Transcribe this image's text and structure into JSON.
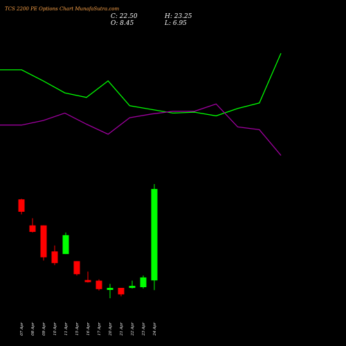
{
  "header": {
    "title": "TCS 2200 PE Options Chart MunafaSutra.com",
    "close_label": "C: 22.50",
    "open_label": "O: 8.45",
    "high_label": "H: 23.25",
    "low_label": "L: 6.95"
  },
  "colors": {
    "background": "#000000",
    "bullish": "#00ff00",
    "bearish": "#ff0000",
    "title": "#ffa54a",
    "line_green": "#00ff00",
    "line_magenta": "#a000a0"
  },
  "chart_data": [
    {
      "type": "line",
      "categories": [
        "",
        "07 Apr",
        "08 Apr",
        "09 Apr",
        "10 Apr",
        "11 Apr",
        "15 Apr",
        "16 Apr",
        "17 Apr",
        "20 Apr",
        "21 Apr",
        "22 Apr",
        "23 Apr",
        "24 Apr"
      ],
      "series": [
        {
          "color": "#00ff00",
          "values": [
            0.82,
            0.82,
            0.7,
            0.57,
            0.52,
            0.7,
            0.43,
            0.39,
            0.35,
            0.36,
            0.32,
            0.4,
            0.46,
            1.0
          ]
        },
        {
          "color": "#a000a0",
          "values": [
            0.22,
            0.22,
            0.27,
            0.35,
            0.23,
            0.12,
            0.3,
            0.34,
            0.37,
            0.37,
            0.45,
            0.2,
            0.17,
            -0.11
          ]
        }
      ]
    },
    {
      "type": "candlestick",
      "categories": [
        "07 Apr",
        "08 Apr",
        "09 Apr",
        "10 Apr",
        "11 Apr",
        "15 Apr",
        "16 Apr",
        "17 Apr",
        "20 Apr",
        "21 Apr",
        "22 Apr",
        "23 Apr",
        "24 Apr"
      ],
      "candles": [
        {
          "date": "07 Apr",
          "open": 20.9,
          "high": 21.0,
          "low": 18.6,
          "close": 19.0
        },
        {
          "date": "08 Apr",
          "open": 16.9,
          "high": 18.0,
          "low": 15.8,
          "close": 15.9
        },
        {
          "date": "09 Apr",
          "open": 16.9,
          "high": 16.9,
          "low": 11.5,
          "close": 12.0
        },
        {
          "date": "10 Apr",
          "open": 12.9,
          "high": 13.8,
          "low": 10.8,
          "close": 11.1
        },
        {
          "date": "11 Apr",
          "open": 12.5,
          "high": 15.8,
          "low": 12.5,
          "close": 15.4
        },
        {
          "date": "15 Apr",
          "open": 11.4,
          "high": 11.4,
          "low": 9.2,
          "close": 9.4
        },
        {
          "date": "16 Apr",
          "open": 8.5,
          "high": 9.8,
          "low": 8.1,
          "close": 8.2
        },
        {
          "date": "17 Apr",
          "open": 8.4,
          "high": 8.6,
          "low": 6.9,
          "close": 7.1
        },
        {
          "date": "20 Apr",
          "open": 7.1,
          "high": 7.9,
          "low": 5.7,
          "close": 7.3
        },
        {
          "date": "21 Apr",
          "open": 7.3,
          "high": 7.3,
          "low": 6.0,
          "close": 6.3
        },
        {
          "date": "22 Apr",
          "open": 7.3,
          "high": 8.4,
          "low": 7.2,
          "close": 7.6
        },
        {
          "date": "23 Apr",
          "open": 7.4,
          "high": 9.2,
          "low": 7.2,
          "close": 8.9
        },
        {
          "date": "24 Apr",
          "open": 8.45,
          "high": 23.25,
          "low": 6.95,
          "close": 22.5
        }
      ]
    }
  ]
}
